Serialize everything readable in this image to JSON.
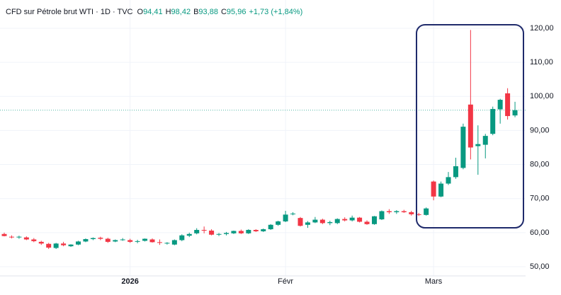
{
  "chart_data": {
    "type": "candlestick",
    "legend": {
      "symbol": "CFD sur Pétrole brut WTI · 1D · TVC",
      "ohlc": [
        {
          "label": "O",
          "value": "94,41"
        },
        {
          "label": "H",
          "value": "98,42"
        },
        {
          "label": "B",
          "value": "93,88"
        },
        {
          "label": "C",
          "value": "95,96"
        }
      ],
      "change": "+1,73 (+1,84%)"
    },
    "categories": [
      null,
      null,
      null,
      null,
      null,
      null,
      null,
      null,
      null,
      null,
      null,
      null,
      null,
      null,
      null,
      null,
      null,
      "2026",
      null,
      null,
      null,
      null,
      null,
      null,
      null,
      null,
      null,
      null,
      null,
      null,
      null,
      null,
      null,
      null,
      null,
      null,
      null,
      null,
      "Févr",
      null,
      null,
      null,
      null,
      null,
      null,
      null,
      null,
      null,
      null,
      null,
      null,
      null,
      null,
      null,
      null,
      null,
      null,
      null,
      "Mars",
      null,
      null,
      null,
      null,
      null,
      null,
      null,
      null,
      null,
      null,
      null
    ],
    "open": [
      59.6,
      58.8,
      58.6,
      58.6,
      58.0,
      57.3,
      56.7,
      55.5,
      56.8,
      56.0,
      56.5,
      57.4,
      58.1,
      58.5,
      58.2,
      57.4,
      57.8,
      57.8,
      57.3,
      57.6,
      58.0,
      57.2,
      56.8,
      56.5,
      57.8,
      59.1,
      59.8,
      60.8,
      60.6,
      59.4,
      59.6,
      59.8,
      60.5,
      59.8,
      60.8,
      60.4,
      61.0,
      62.3,
      63.3,
      65.4,
      64.3,
      62.3,
      63.0,
      63.8,
      62.8,
      62.8,
      64.0,
      63.6,
      64.4,
      63.2,
      62.5,
      63.9,
      66.3,
      66.0,
      66.3,
      66.0,
      65.4,
      65.2,
      75.0,
      70.6,
      74.4,
      76.3,
      79.0,
      97.6,
      85.4,
      85.8,
      89.0,
      96.2,
      100.9,
      94.41
    ],
    "high": [
      60.0,
      59.2,
      59.1,
      58.9,
      58.4,
      57.6,
      57.0,
      57.0,
      57.3,
      56.6,
      57.6,
      58.3,
      58.6,
      58.8,
      58.5,
      58.0,
      58.4,
      58.2,
      57.9,
      58.3,
      58.3,
      58.0,
      57.2,
      58.0,
      59.5,
      60.0,
      61.3,
      61.8,
      61.0,
      59.9,
      60.2,
      60.6,
      60.9,
      61.0,
      61.0,
      61.2,
      62.5,
      63.5,
      66.4,
      66.0,
      64.6,
      63.4,
      64.6,
      64.1,
      63.5,
      64.2,
      64.5,
      65.0,
      64.6,
      63.6,
      64.9,
      66.5,
      66.9,
      66.6,
      66.7,
      66.4,
      65.8,
      67.4,
      75.3,
      75.0,
      77.8,
      82.0,
      92.0,
      119.5,
      91.5,
      89.0,
      97.0,
      99.3,
      102.4,
      98.42
    ],
    "low": [
      58.9,
      58.3,
      58.2,
      57.8,
      57.2,
      56.4,
      55.2,
      55.2,
      56.0,
      55.8,
      56.3,
      57.2,
      57.8,
      57.8,
      57.0,
      57.2,
      57.6,
      57.0,
      56.9,
      57.4,
      57.1,
      56.4,
      56.5,
      56.3,
      57.5,
      58.7,
      59.5,
      59.8,
      59.2,
      59.0,
      59.2,
      59.6,
      59.6,
      59.6,
      60.2,
      60.2,
      60.8,
      62.0,
      63.1,
      65.1,
      61.8,
      61.4,
      62.8,
      62.5,
      62.2,
      62.5,
      63.3,
      63.3,
      63.0,
      62.3,
      62.3,
      63.7,
      65.5,
      65.5,
      65.8,
      65.0,
      64.9,
      65.0,
      69.5,
      70.4,
      74.0,
      75.8,
      78.6,
      81.5,
      77.0,
      81.8,
      88.6,
      92.0,
      93.2,
      93.88
    ],
    "close": [
      59.0,
      58.6,
      58.8,
      58.0,
      57.5,
      56.8,
      55.6,
      56.8,
      56.3,
      56.5,
      57.4,
      58.1,
      58.4,
      58.2,
      57.3,
      57.8,
      58.0,
      57.3,
      57.5,
      58.2,
      57.2,
      57.0,
      57.0,
      57.8,
      59.2,
      59.6,
      60.8,
      60.6,
      59.4,
      59.6,
      59.9,
      60.5,
      59.8,
      60.8,
      60.4,
      61.0,
      62.3,
      63.3,
      65.3,
      65.6,
      62.0,
      63.0,
      63.8,
      62.8,
      63.1,
      64.0,
      63.6,
      64.4,
      63.2,
      62.5,
      64.8,
      66.3,
      66.0,
      66.3,
      66.0,
      65.4,
      65.2,
      67.1,
      70.6,
      74.4,
      76.3,
      79.5,
      91.1,
      85.0,
      86.0,
      88.4,
      96.3,
      99.0,
      94.23,
      95.96
    ],
    "up_color": "#089981",
    "down_color": "#f23645",
    "ylim": [
      47.3,
      128.3
    ],
    "yticks": [
      {
        "value": 50,
        "label": "50,00"
      },
      {
        "value": 60,
        "label": "60,00"
      },
      {
        "value": 70,
        "label": "70,00"
      },
      {
        "value": 80,
        "label": "80,00"
      },
      {
        "value": 90,
        "label": "90,00"
      },
      {
        "value": 100,
        "label": "100,00"
      },
      {
        "value": 110,
        "label": "110,00"
      },
      {
        "value": 120,
        "label": "120,00"
      }
    ],
    "grid": true
  }
}
